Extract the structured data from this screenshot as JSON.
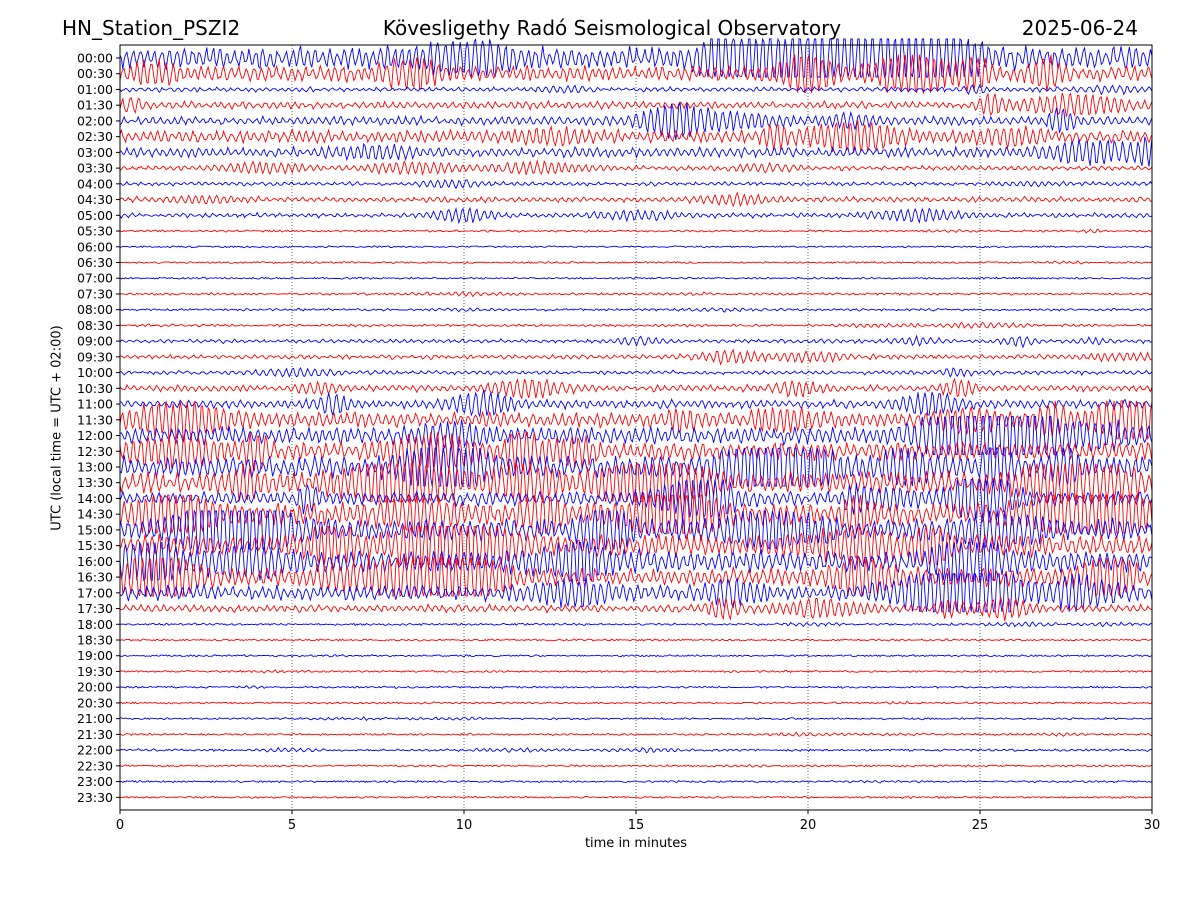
{
  "header": {
    "station": "HN_Station_PSZI2",
    "observatory": "Kövesligethy Radó Seismological Observatory",
    "date": "2025-06-24"
  },
  "colors": {
    "odd_rows": "#0000ff",
    "even_rows": "#ff0000",
    "grid": "#000000"
  },
  "chart_data": {
    "type": "line",
    "subtype": "helicorder",
    "xlabel": "time in minutes",
    "ylabel": "UTC (local time = UTC + 02:00)",
    "xlim": [
      0,
      30
    ],
    "x_ticks": [
      0,
      5,
      10,
      15,
      20,
      25,
      30
    ],
    "grid": "vertical dotted lines at 5-minute ticks",
    "row_labels": [
      "00:00",
      "00:30",
      "01:00",
      "01:30",
      "02:00",
      "02:30",
      "03:00",
      "03:30",
      "04:00",
      "04:30",
      "05:00",
      "05:30",
      "06:00",
      "06:30",
      "07:00",
      "07:30",
      "08:00",
      "08:30",
      "09:00",
      "09:30",
      "10:00",
      "10:30",
      "11:00",
      "11:30",
      "12:00",
      "12:30",
      "13:00",
      "13:30",
      "14:00",
      "14:30",
      "15:00",
      "15:30",
      "16:00",
      "16:30",
      "17:00",
      "17:30",
      "18:00",
      "18:30",
      "19:00",
      "19:30",
      "20:00",
      "20:30",
      "21:00",
      "21:30",
      "22:00",
      "22:30",
      "23:00",
      "23:30"
    ],
    "relative_amplitude": [
      1.0,
      0.8,
      0.35,
      0.5,
      0.55,
      0.7,
      0.6,
      0.35,
      0.3,
      0.4,
      0.35,
      0.12,
      0.05,
      0.08,
      0.08,
      0.15,
      0.15,
      0.2,
      0.3,
      0.35,
      0.3,
      0.45,
      0.55,
      0.8,
      0.85,
      0.9,
      1.0,
      1.0,
      0.75,
      1.0,
      1.0,
      1.0,
      1.0,
      0.9,
      0.8,
      0.5,
      0.15,
      0.1,
      0.06,
      0.1,
      0.1,
      0.1,
      0.12,
      0.12,
      0.15,
      0.1,
      0.1,
      0.08
    ],
    "colors_alternate": [
      "blue",
      "red"
    ]
  }
}
